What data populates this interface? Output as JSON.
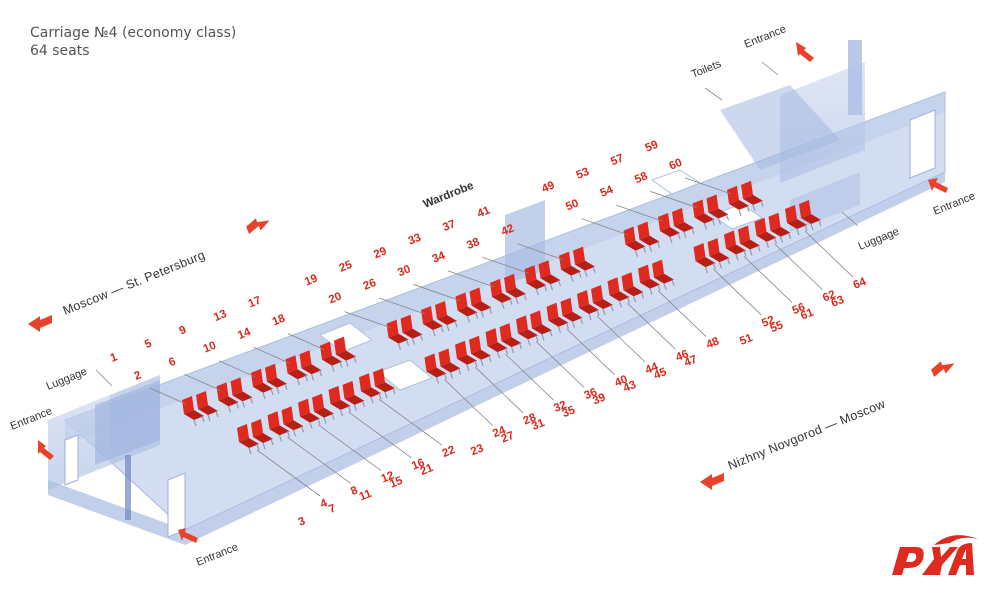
{
  "header": {
    "title": "Carriage №4 (economy class)",
    "subtitle": "64 seats"
  },
  "labels": {
    "entrance": "Entrance",
    "luggage": "Luggage",
    "toilets": "Toilets",
    "wardrobe": "Wardrobe"
  },
  "directions": {
    "top": "Moscow — St. Petersburg",
    "bottom": "Nizhny Novgorod — Moscow"
  },
  "seats": {
    "upper_rows": [
      [
        "1",
        "2"
      ],
      [
        "5",
        "6"
      ],
      [
        "9",
        "10"
      ],
      [
        "13",
        "14"
      ],
      [
        "17",
        "18"
      ],
      [
        "19",
        "20"
      ],
      [
        "25",
        "26"
      ],
      [
        "29",
        "30"
      ],
      [
        "33",
        "34"
      ],
      [
        "37",
        "38"
      ],
      [
        "41",
        "42"
      ],
      [
        "49",
        "50"
      ],
      [
        "53",
        "54"
      ],
      [
        "57",
        "58"
      ],
      [
        "59",
        "60"
      ]
    ],
    "lower_rows": [
      [
        "4",
        "3"
      ],
      [
        "8",
        "7"
      ],
      [
        "12",
        "11"
      ],
      [
        "16",
        "15"
      ],
      [
        "22",
        "21"
      ],
      [
        "24",
        "23"
      ],
      [
        "28",
        "27"
      ],
      [
        "32",
        "31"
      ],
      [
        "36",
        "35"
      ],
      [
        "40",
        "39"
      ],
      [
        "44",
        "43"
      ],
      [
        "46",
        "45"
      ],
      [
        "48",
        "47"
      ],
      [
        "52",
        "51"
      ],
      [
        "56",
        "55"
      ],
      [
        "62",
        "61"
      ],
      [
        "64",
        "63"
      ]
    ]
  },
  "colors": {
    "seat": "#e02a1f",
    "accent": "#e8422a",
    "glass": "#b7c7e6",
    "floor": "#c9d6ee"
  },
  "logo": {
    "text": "РЖД"
  }
}
